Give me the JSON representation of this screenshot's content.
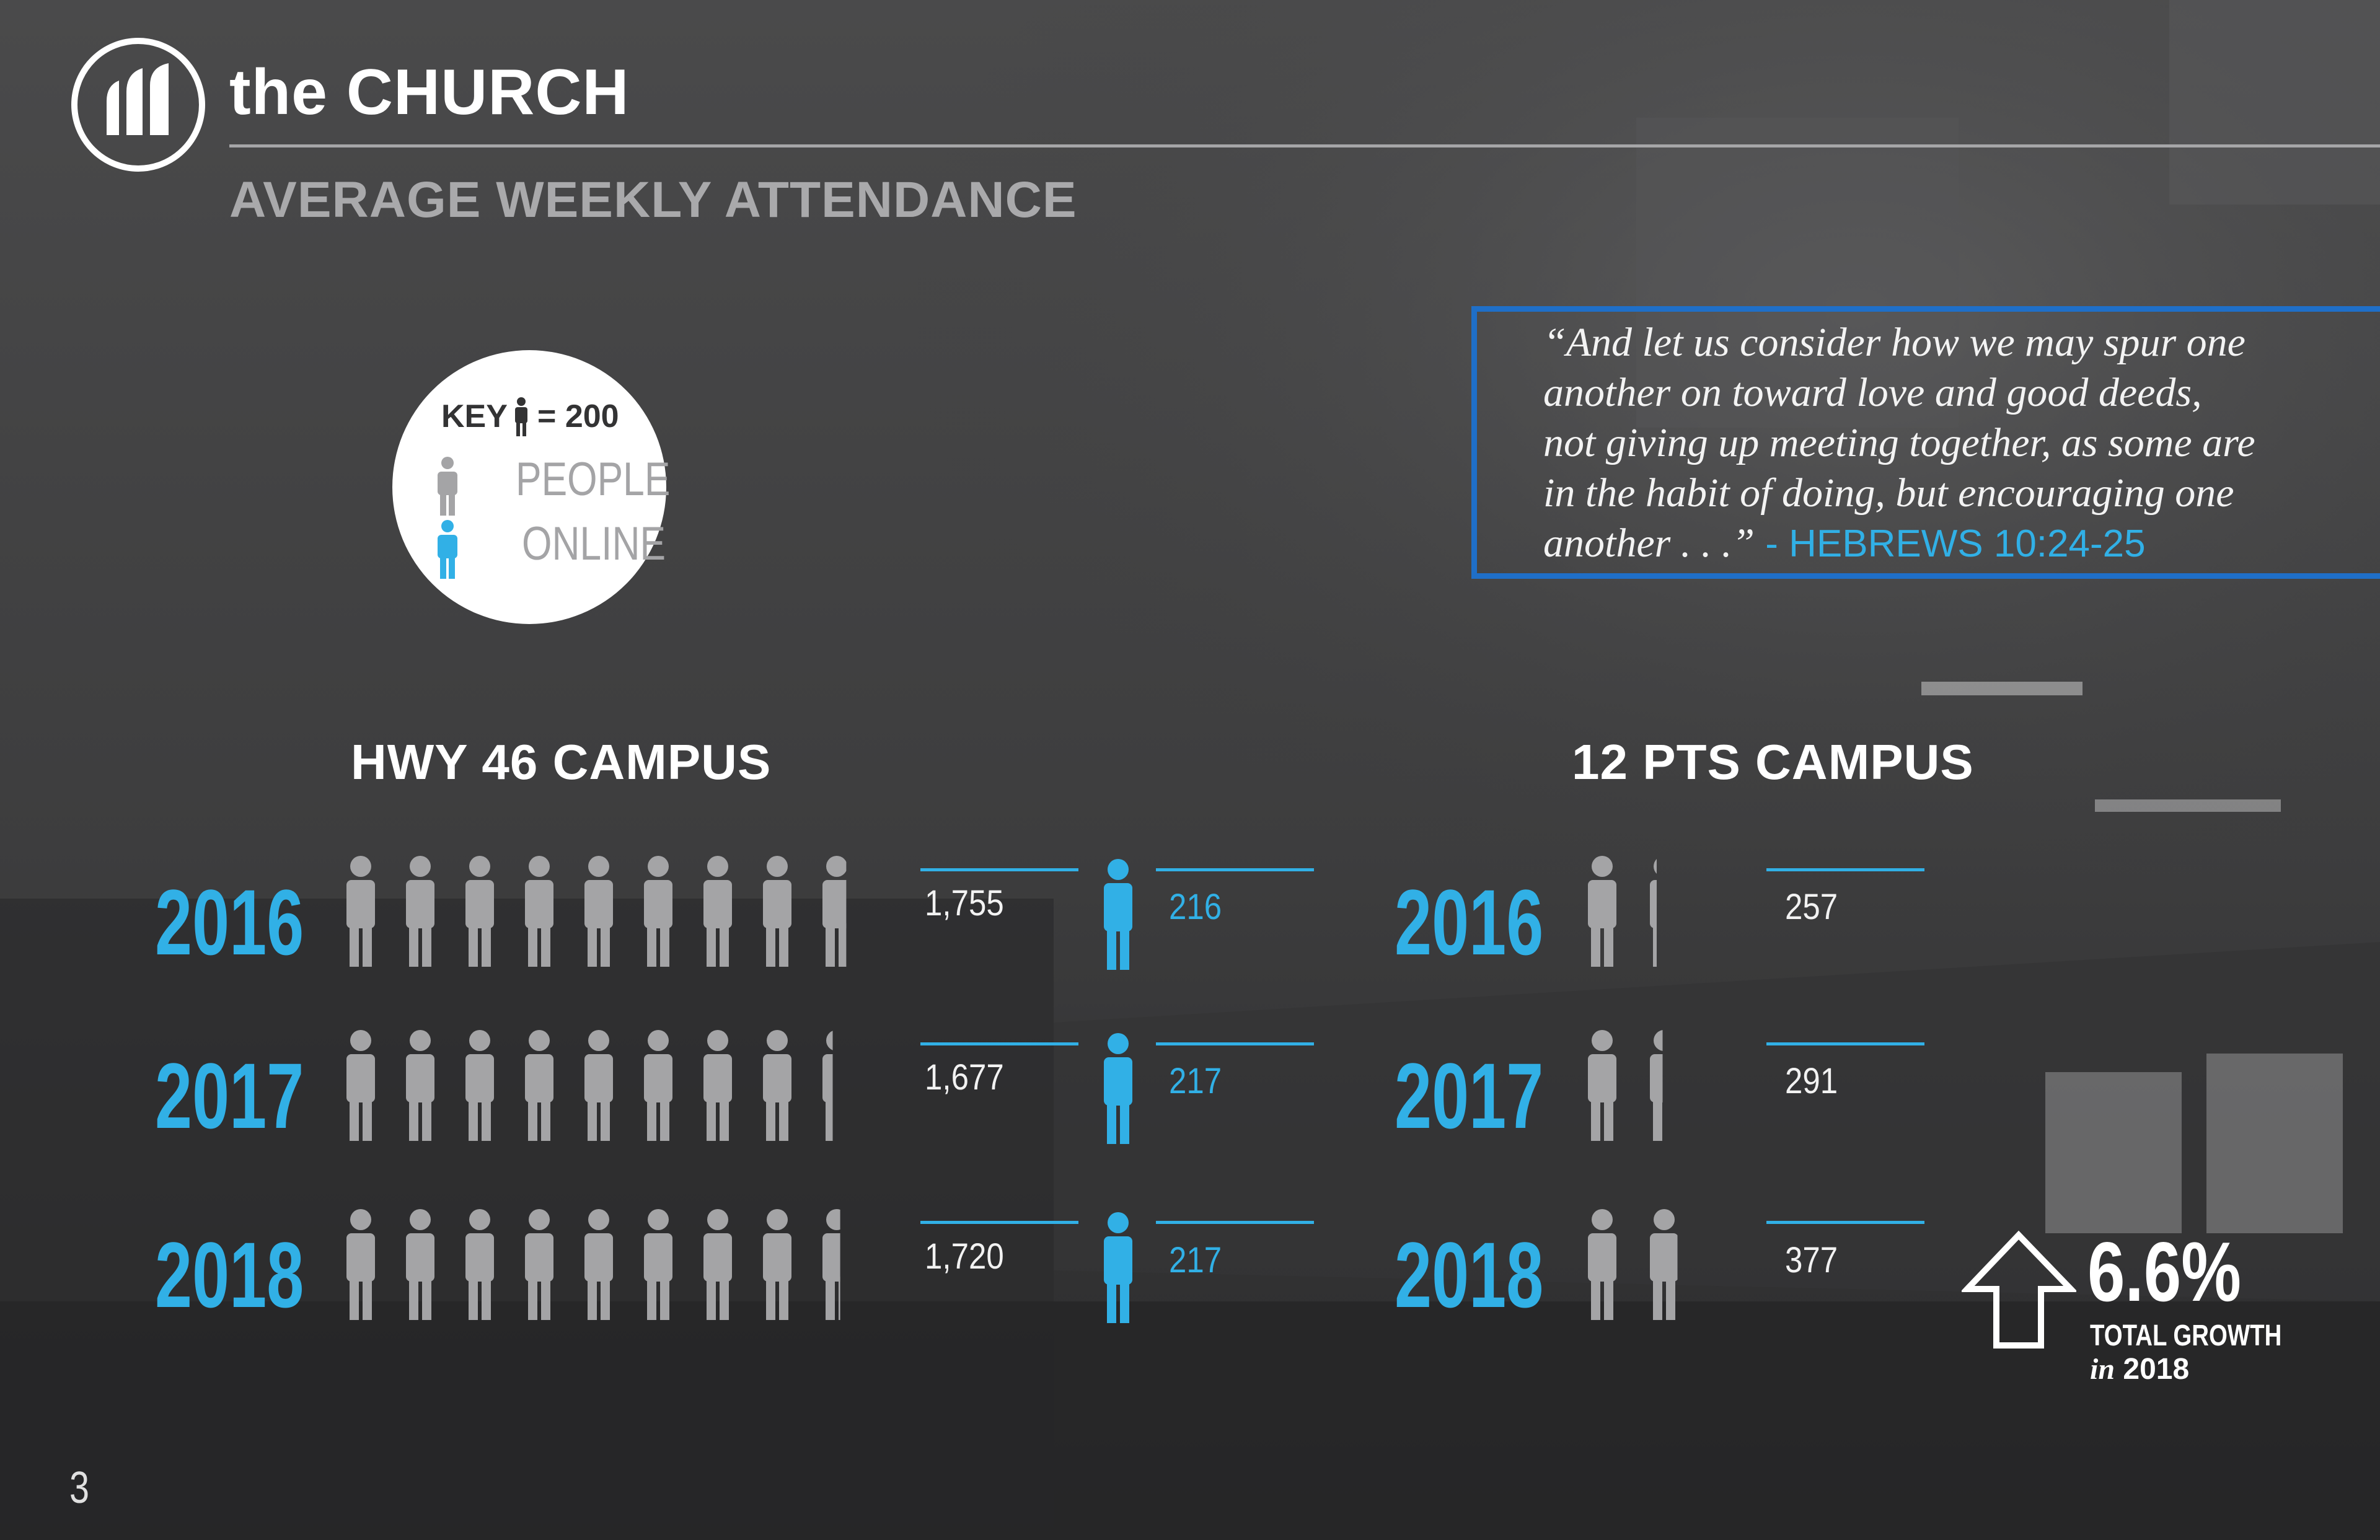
{
  "header": {
    "brand": "the CHURCH",
    "subtitle": "AVERAGE WEEKLY ATTENDANCE"
  },
  "quote": {
    "lines": [
      "“And let us consider how we may spur one",
      "another on toward love and good deeds,",
      "not giving up meeting together, as some are",
      "in the habit of doing, but encouraging one"
    ],
    "last_line": "another . . .”",
    "reference": " - HEBREWS 10:24-25"
  },
  "key": {
    "title": "KEY",
    "equals": "= 200",
    "people_label": "PEOPLE",
    "online_label": "ONLINE"
  },
  "campuses": {
    "hwy46": {
      "title": "HWY 46 CAMPUS",
      "rows": [
        {
          "year": "2016",
          "people": "1,755",
          "online": "216"
        },
        {
          "year": "2017",
          "people": "1,677",
          "online": "217"
        },
        {
          "year": "2018",
          "people": "1,720",
          "online": "217"
        }
      ]
    },
    "pts12": {
      "title": "12 PTS CAMPUS",
      "rows": [
        {
          "year": "2016",
          "people": "257"
        },
        {
          "year": "2017",
          "people": "291"
        },
        {
          "year": "2018",
          "people": "377"
        }
      ]
    }
  },
  "growth": {
    "value": "6.6%",
    "label": "TOTAL GROWTH",
    "in_word": "in",
    "year": " 2018"
  },
  "page_number": "3",
  "colors": {
    "accent_blue": "#31b0e6",
    "box_blue": "#1f6fc8",
    "person_gray": "#a4a4a6",
    "background": "#3f3f40"
  },
  "icons": {
    "person": "person-icon",
    "logo": "church-logo-icon",
    "growth": "up-arrow-icon"
  }
}
